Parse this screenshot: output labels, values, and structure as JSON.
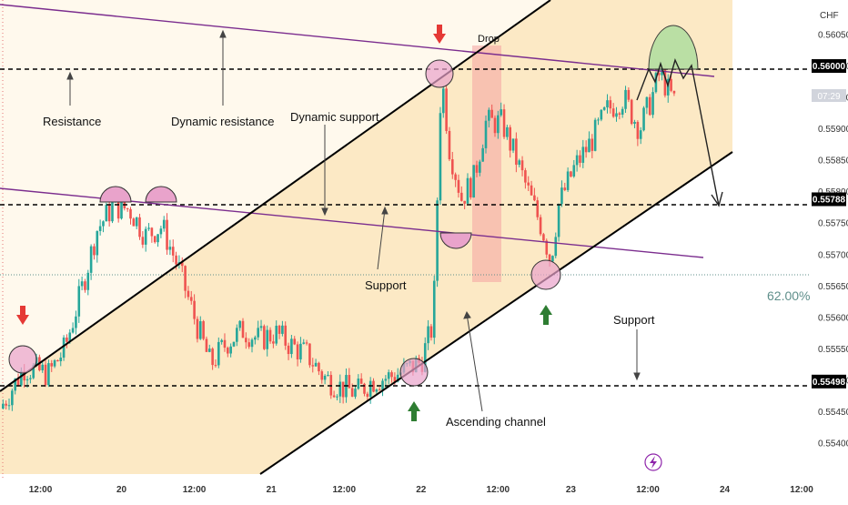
{
  "chart_data": {
    "type": "candlestick",
    "currency_label": "CHF",
    "y_range": [
      0.55345,
      0.56105
    ],
    "x_range": [
      0,
      100
    ],
    "y_ticks": [
      0.5605,
      0.56,
      0.5595,
      0.559,
      0.5585,
      0.558,
      0.5575,
      0.557,
      0.5565,
      0.556,
      0.5555,
      0.555,
      0.5545,
      0.554
    ],
    "y_tick_labels": [
      "0.56050",
      "0.56000",
      "0.55950",
      "0.55900",
      "0.55850",
      "0.55800",
      "0.55750",
      "0.55700",
      "0.55650",
      "0.55600",
      "0.55550",
      "0.55500",
      "0.55450",
      "0.55400"
    ],
    "x_ticks": [
      {
        "x": 5,
        "label": "12:00"
      },
      {
        "x": 15,
        "label": "20"
      },
      {
        "x": 24,
        "label": "12:00"
      },
      {
        "x": 33.5,
        "label": "21"
      },
      {
        "x": 42.5,
        "label": "12:00"
      },
      {
        "x": 52,
        "label": "22"
      },
      {
        "x": 61.5,
        "label": "12:00"
      },
      {
        "x": 70.5,
        "label": "23"
      },
      {
        "x": 80,
        "label": "12:00"
      },
      {
        "x": 89.5,
        "label": "24"
      },
      {
        "x": 99,
        "label": "12:00"
      }
    ],
    "price_labels": [
      {
        "label": "0.56000",
        "value": 0.56
      },
      {
        "label": "0.55788",
        "value": 0.55788
      },
      {
        "label": "0.55498",
        "value": 0.55498
      }
    ],
    "countdown_label": "07:29",
    "fib_label": "62.00%",
    "fib_level": 0.55674,
    "horizontal_levels": [
      0.56,
      0.55788,
      0.55498
    ],
    "candles_keypoints": [
      [
        0,
        0.55455
      ],
      [
        3,
        0.5552
      ],
      [
        6,
        0.5551
      ],
      [
        8,
        0.5555
      ],
      [
        10,
        0.5564
      ],
      [
        12,
        0.5574
      ],
      [
        14,
        0.55778
      ],
      [
        16,
        0.55772
      ],
      [
        18,
        0.5573
      ],
      [
        20,
        0.55745
      ],
      [
        22,
        0.5568
      ],
      [
        24,
        0.556
      ],
      [
        26,
        0.55525
      ],
      [
        28,
        0.5556
      ],
      [
        30,
        0.5558
      ],
      [
        32,
        0.55565
      ],
      [
        34,
        0.55575
      ],
      [
        36,
        0.55555
      ],
      [
        38,
        0.5554
      ],
      [
        40,
        0.55505
      ],
      [
        42,
        0.5549
      ],
      [
        44,
        0.5548
      ],
      [
        46,
        0.555
      ],
      [
        48,
        0.55505
      ],
      [
        50,
        0.55515
      ],
      [
        52,
        0.5553
      ],
      [
        53.5,
        0.5559
      ],
      [
        54.5,
        0.5599
      ],
      [
        55.5,
        0.5587
      ],
      [
        57,
        0.5579
      ],
      [
        58.5,
        0.5582
      ],
      [
        60,
        0.5591
      ],
      [
        62,
        0.5591
      ],
      [
        63.5,
        0.5586
      ],
      [
        65.5,
        0.5579
      ],
      [
        67,
        0.5574
      ],
      [
        68,
        0.5569
      ],
      [
        69,
        0.5578
      ],
      [
        71,
        0.5584
      ],
      [
        73,
        0.5588
      ],
      [
        75,
        0.5593
      ],
      [
        77,
        0.5595
      ],
      [
        79,
        0.559
      ],
      [
        80.5,
        0.5595
      ],
      [
        81.5,
        0.5599
      ],
      [
        82.5,
        0.5596
      ],
      [
        83.5,
        0.5594
      ]
    ],
    "annotations": [
      {
        "text": "Resistance"
      },
      {
        "text": "Dynamic resistance"
      },
      {
        "text": "Dynamic support"
      },
      {
        "text": "Support"
      },
      {
        "text": "Drop"
      },
      {
        "text": "Ascending channel"
      },
      {
        "text": "Support"
      }
    ],
    "colors": {
      "bull": "#26a69a",
      "bear": "#ef5350",
      "purple": "#7b2d8e",
      "channel_fill": "#fce7bf",
      "drop_box": "#f4a3a0",
      "circle_pink": "#e9a3cb",
      "dome_green": "#b7dfa3",
      "arrow_red": "#e53935",
      "arrow_green": "#2e7d32",
      "fib": "#5f8f8b"
    }
  }
}
